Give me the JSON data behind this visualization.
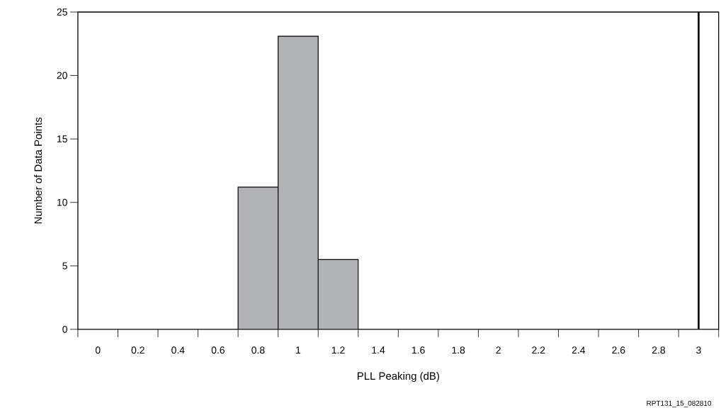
{
  "chart_data": {
    "type": "histogram",
    "xlabel": "PLL Peaking (dB)",
    "ylabel": "Number of Data Points",
    "bins": [
      0.7,
      0.9,
      1.1,
      1.3
    ],
    "values": [
      11.2,
      23.1,
      5.5
    ],
    "color": "#b1b2b6",
    "xlim": [
      -0.1,
      3.1
    ],
    "ylim": [
      0,
      25
    ],
    "xticks": [
      {
        "value": -0.1,
        "label": null
      },
      {
        "value": 0.1,
        "label": null
      },
      {
        "value": 0.3,
        "label": null
      },
      {
        "value": 0.5,
        "label": null
      },
      {
        "value": 0.7,
        "label": null
      },
      {
        "value": 0.9,
        "label": null
      },
      {
        "value": 1.1,
        "label": null
      },
      {
        "value": 1.3,
        "label": null
      },
      {
        "value": 1.5,
        "label": null
      },
      {
        "value": 1.7,
        "label": null
      },
      {
        "value": 1.9,
        "label": null
      },
      {
        "value": 2.1,
        "label": null
      },
      {
        "value": 2.3,
        "label": null
      },
      {
        "value": 2.5,
        "label": null
      },
      {
        "value": 2.7,
        "label": null
      },
      {
        "value": 2.9,
        "label": null
      },
      {
        "value": 3.1,
        "label": null
      },
      {
        "value": 0,
        "label": "0"
      },
      {
        "value": 0.2,
        "label": "0.2"
      },
      {
        "value": 0.4,
        "label": "0.4"
      },
      {
        "value": 0.6,
        "label": "0.6"
      },
      {
        "value": 0.8,
        "label": "0.8"
      },
      {
        "value": 1,
        "label": "1"
      },
      {
        "value": 1.2,
        "label": "1.2"
      },
      {
        "value": 1.4,
        "label": "1.4"
      },
      {
        "value": 1.6,
        "label": "1.6"
      },
      {
        "value": 1.8,
        "label": "1.8"
      },
      {
        "value": 2,
        "label": "2"
      },
      {
        "value": 2.2,
        "label": "2.2"
      },
      {
        "value": 2.4,
        "label": "2.4"
      },
      {
        "value": 2.6,
        "label": "2.6"
      },
      {
        "value": 2.8,
        "label": "2.8"
      },
      {
        "value": 3,
        "label": "3"
      }
    ],
    "yticks": [
      0,
      5,
      10,
      15,
      20,
      25
    ],
    "ref_lines": [
      {
        "axis": "x",
        "value": 3,
        "color": "#000000"
      }
    ],
    "grid": false,
    "annotations": [
      "RPT131_15_082810"
    ]
  }
}
